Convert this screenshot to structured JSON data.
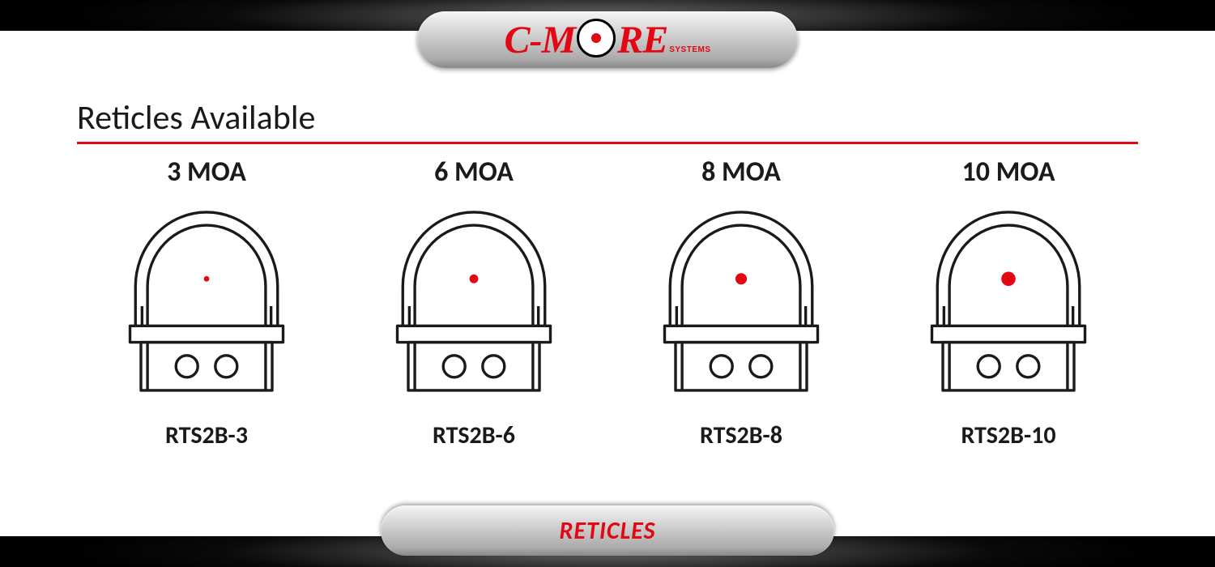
{
  "brand": {
    "c_part": "C",
    "dash": "-",
    "m_part": "M",
    "re_part": "RE",
    "systems": "SYSTEMS",
    "brand_color": "#e30613",
    "outline_color": "#000000"
  },
  "title": "Reticles Available",
  "footer_label": "RETICLES",
  "rule_color": "#e30613",
  "band_bg": "#0a0a0a",
  "dot_color": "#e30613",
  "stroke_color": "#1a1a1a",
  "stroke_width": 2.5,
  "reticles": [
    {
      "moa_label": "3 MOA",
      "model": "RTS2B-3",
      "dot_r": 2.5
    },
    {
      "moa_label": "6 MOA",
      "model": "RTS2B-6",
      "dot_r": 4.0
    },
    {
      "moa_label": "8 MOA",
      "model": "RTS2B-8",
      "dot_r": 5.2
    },
    {
      "moa_label": "10 MOA",
      "model": "RTS2B-10",
      "dot_r": 6.5
    }
  ]
}
